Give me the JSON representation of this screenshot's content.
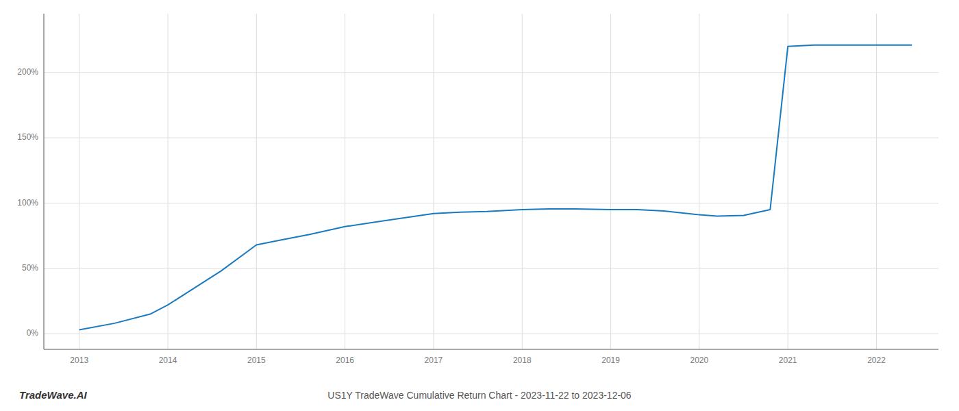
{
  "chart_data": {
    "type": "line",
    "title": "US1Y TradeWave Cumulative Return Chart - 2023-11-22 to 2023-12-06",
    "annotations": [
      "TradeWave.AI"
    ],
    "x": [
      2013.0,
      2013.4,
      2013.8,
      2014.0,
      2014.3,
      2014.6,
      2015.0,
      2015.3,
      2015.6,
      2016.0,
      2016.3,
      2016.6,
      2017.0,
      2017.3,
      2017.6,
      2018.0,
      2018.3,
      2018.6,
      2019.0,
      2019.3,
      2019.6,
      2020.0,
      2020.2,
      2020.5,
      2020.8,
      2021.0,
      2021.3,
      2021.6,
      2022.0,
      2022.4
    ],
    "values": [
      3,
      8,
      15,
      22,
      35,
      48,
      68,
      72,
      76,
      82,
      85,
      88,
      92,
      93,
      93.5,
      95,
      95.5,
      95.5,
      95,
      95,
      94,
      91,
      90,
      90.5,
      95,
      220,
      221,
      221,
      221,
      221
    ],
    "color": "#1a7abf",
    "xlim": [
      2012.6,
      2022.7
    ],
    "ylim": [
      -12,
      245
    ],
    "xticks": [
      2013,
      2014,
      2015,
      2016,
      2017,
      2018,
      2019,
      2020,
      2021,
      2022
    ],
    "yticks": [
      {
        "value": 0,
        "label": "0%"
      },
      {
        "value": 50,
        "label": "50%"
      },
      {
        "value": 100,
        "label": "100%"
      },
      {
        "value": 150,
        "label": "150%"
      },
      {
        "value": 200,
        "label": "200%"
      }
    ],
    "grid": true
  }
}
